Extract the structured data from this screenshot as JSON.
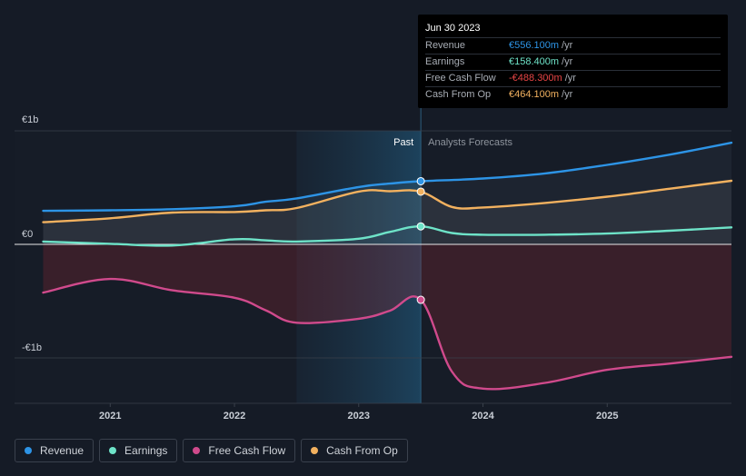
{
  "tooltip": {
    "date": "Jun 30 2023",
    "rows": [
      {
        "label": "Revenue",
        "value": "€556.100m",
        "unit": "/yr",
        "color": "#2d94e6"
      },
      {
        "label": "Earnings",
        "value": "€158.400m",
        "unit": "/yr",
        "color": "#6ee3c8"
      },
      {
        "label": "Free Cash Flow",
        "value": "-€488.300m",
        "unit": "/yr",
        "color": "#e84545"
      },
      {
        "label": "Cash From Op",
        "value": "€464.100m",
        "unit": "/yr",
        "color": "#f2b15f"
      }
    ]
  },
  "legend": [
    {
      "label": "Revenue",
      "color": "#2d94e6"
    },
    {
      "label": "Earnings",
      "color": "#6ee3c8"
    },
    {
      "label": "Free Cash Flow",
      "color": "#d04a8c"
    },
    {
      "label": "Cash From Op",
      "color": "#f2b15f"
    }
  ],
  "chart_data": {
    "type": "line",
    "y_tick_labels": [
      "€1b",
      "€0",
      "-€1b"
    ],
    "y_ticks": [
      1000,
      0,
      -1000
    ],
    "ylim": [
      -1400,
      1000
    ],
    "x_tick_labels": [
      "2021",
      "2022",
      "2023",
      "2024",
      "2025"
    ],
    "x_ticks": [
      2021.0,
      2022.0,
      2023.0,
      2024.0,
      2025.0
    ],
    "xlim": [
      2020.23,
      2026.0
    ],
    "past_label": "Past",
    "forecast_label": "Analysts Forecasts",
    "forecast_start": 2023.5,
    "highlight_range": [
      2022.5,
      2023.5
    ],
    "grid": true,
    "series": [
      {
        "name": "Revenue",
        "color": "#2d94e6",
        "points": [
          [
            2020.46,
            295
          ],
          [
            2021.0,
            300
          ],
          [
            2021.5,
            310
          ],
          [
            2022.0,
            335
          ],
          [
            2022.25,
            375
          ],
          [
            2022.5,
            405
          ],
          [
            2023.0,
            505
          ],
          [
            2023.25,
            535
          ],
          [
            2023.5,
            556.1
          ],
          [
            2024.0,
            580
          ],
          [
            2024.5,
            625
          ],
          [
            2025.0,
            700
          ],
          [
            2025.5,
            790
          ],
          [
            2026.0,
            895
          ]
        ]
      },
      {
        "name": "Cash From Op",
        "color": "#f2b15f",
        "points": [
          [
            2020.46,
            195
          ],
          [
            2021.0,
            230
          ],
          [
            2021.5,
            280
          ],
          [
            2022.0,
            285
          ],
          [
            2022.25,
            300
          ],
          [
            2022.5,
            320
          ],
          [
            2023.0,
            465
          ],
          [
            2023.25,
            468
          ],
          [
            2023.5,
            464.1
          ],
          [
            2023.75,
            330
          ],
          [
            2024.0,
            325
          ],
          [
            2024.5,
            365
          ],
          [
            2025.0,
            420
          ],
          [
            2025.5,
            490
          ],
          [
            2026.0,
            560
          ]
        ]
      },
      {
        "name": "Earnings",
        "color": "#6ee3c8",
        "points": [
          [
            2020.46,
            25
          ],
          [
            2021.0,
            5
          ],
          [
            2021.5,
            -10
          ],
          [
            2022.0,
            45
          ],
          [
            2022.25,
            35
          ],
          [
            2022.5,
            25
          ],
          [
            2023.0,
            50
          ],
          [
            2023.25,
            110
          ],
          [
            2023.5,
            158.4
          ],
          [
            2023.75,
            100
          ],
          [
            2024.0,
            85
          ],
          [
            2024.5,
            85
          ],
          [
            2025.0,
            95
          ],
          [
            2025.5,
            120
          ],
          [
            2026.0,
            150
          ]
        ]
      },
      {
        "name": "Free Cash Flow",
        "color": "#d04a8c",
        "points": [
          [
            2020.46,
            -425
          ],
          [
            2021.0,
            -305
          ],
          [
            2021.5,
            -405
          ],
          [
            2022.0,
            -470
          ],
          [
            2022.25,
            -580
          ],
          [
            2022.5,
            -690
          ],
          [
            2023.0,
            -655
          ],
          [
            2023.25,
            -585
          ],
          [
            2023.5,
            -488.3
          ],
          [
            2023.75,
            -1120
          ],
          [
            2024.0,
            -1270
          ],
          [
            2024.5,
            -1220
          ],
          [
            2025.0,
            -1105
          ],
          [
            2025.5,
            -1050
          ],
          [
            2026.0,
            -990
          ]
        ]
      }
    ]
  }
}
